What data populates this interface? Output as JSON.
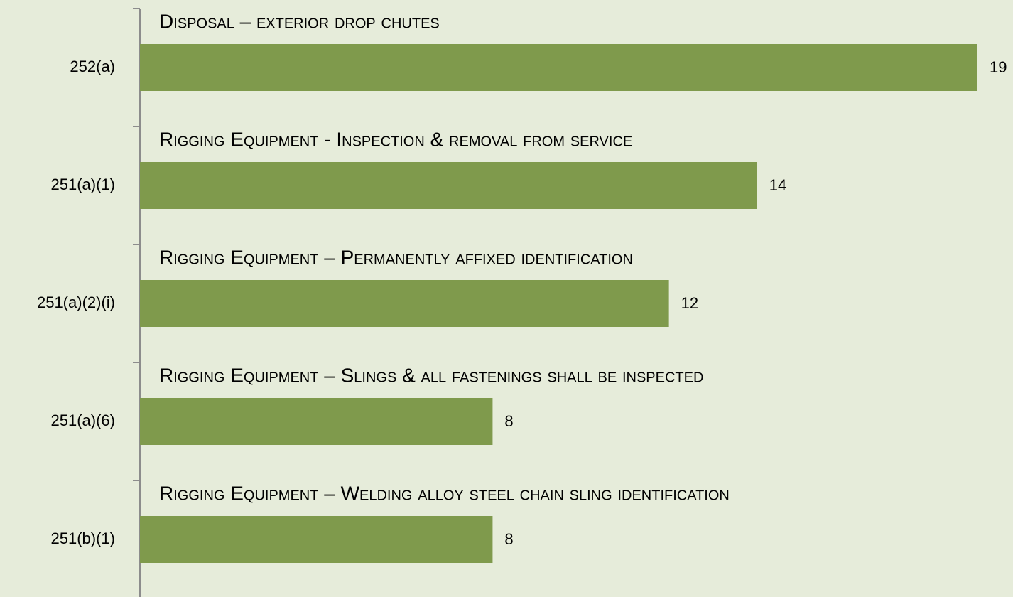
{
  "chart_data": {
    "type": "bar",
    "orientation": "horizontal",
    "categories": [
      "252(a)",
      "251(a)(1)",
      "251(a)(2)(i)",
      "251(a)(6)",
      "251(b)(1)"
    ],
    "values": [
      19,
      14,
      12,
      8,
      8
    ],
    "annotations": [
      "Disposal – exterior drop chutes",
      "Rigging Equipment - Inspection & removal from service",
      "Rigging Equipment – Permanently affixed identification",
      "Rigging Equipment – Slings & all fastenings shall be inspected",
      "Rigging Equipment – Welding alloy steel chain sling identification"
    ],
    "color": "#7f9a4c"
  }
}
